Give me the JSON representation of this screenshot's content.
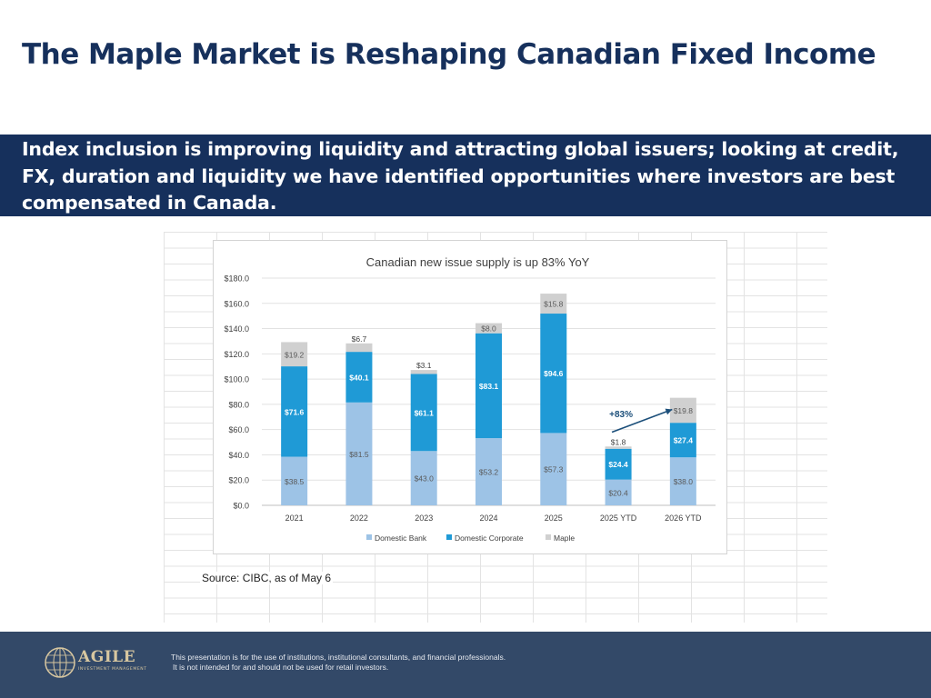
{
  "slide": {
    "title": "The Maple Market is Reshaping Canadian Fixed Income",
    "banner_text": "Index inclusion is improving liquidity and attracting global issuers; looking at credit, FX, duration and liquidity we have identified opportunities where investors are best compensated in Canada.",
    "source": "Source: CIBC, as of May 6"
  },
  "footer": {
    "logo_text": "AGILE",
    "logo_subtext": "INVESTMENT MANAGEMENT",
    "disclaimer_line1": "This presentation is for the use of institutions, institutional consultants, and financial professionals.",
    "disclaimer_line2": "It is not intended for and should not be used for retail investors."
  },
  "chart_data": {
    "type": "bar",
    "stacked": true,
    "title": "Canadian new issue supply is up 83% YoY",
    "categories": [
      "2021",
      "2022",
      "2023",
      "2024",
      "2025",
      "2025 YTD",
      "2026 YTD"
    ],
    "series": [
      {
        "name": "Domestic Bank",
        "color": "#9dc3e6",
        "values": [
          38.5,
          81.5,
          43.0,
          53.2,
          57.3,
          20.4,
          38.0
        ],
        "labels": [
          "$38.5",
          "$81.5",
          "$43.0",
          "$53.2",
          "$57.3",
          "$20.4",
          "$38.0"
        ]
      },
      {
        "name": "Domestic Corporate",
        "color": "#1f9ad6",
        "values": [
          71.6,
          40.1,
          61.1,
          83.1,
          94.6,
          24.4,
          27.4
        ],
        "labels": [
          "$71.6",
          "$40.1",
          "$61.1",
          "$83.1",
          "$94.6",
          "$24.4",
          "$27.4"
        ]
      },
      {
        "name": "Maple",
        "color": "#d0d0d0",
        "values": [
          19.2,
          6.7,
          3.1,
          8.0,
          15.8,
          1.8,
          19.8
        ],
        "labels": [
          "$19.2",
          "$6.7",
          "$3.1",
          "$8.0",
          "$15.8",
          "$1.8",
          "$19.8"
        ]
      }
    ],
    "y_ticks": [
      "$0.0",
      "$20.0",
      "$40.0",
      "$60.0",
      "$80.0",
      "$100.0",
      "$120.0",
      "$140.0",
      "$160.0",
      "$180.0"
    ],
    "ylim": [
      0,
      180
    ],
    "grid": true,
    "legend_position": "bottom",
    "annotation": {
      "text": "+83%",
      "from_category": "2025 YTD",
      "to_category": "2026 YTD",
      "color": "#1c4f7a"
    }
  }
}
